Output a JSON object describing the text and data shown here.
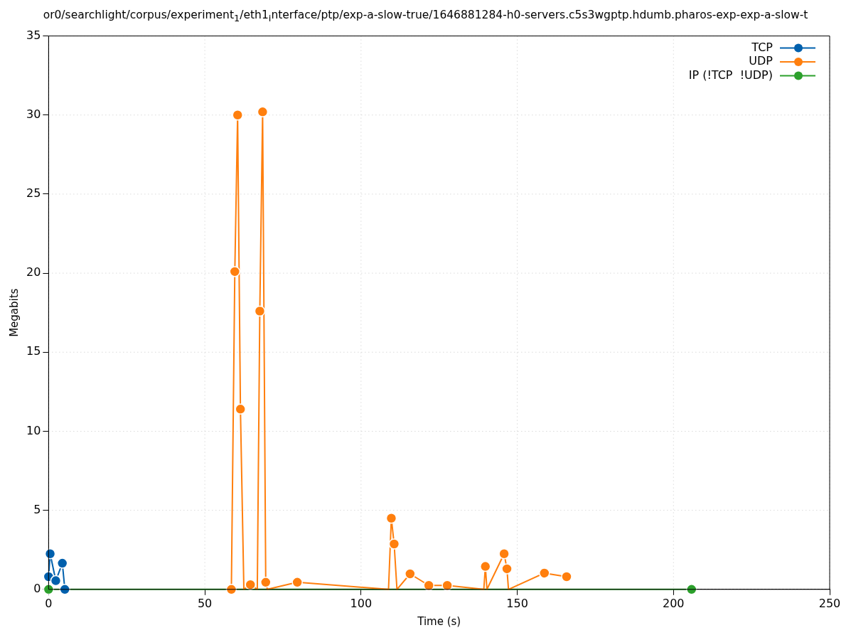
{
  "chart_data": {
    "type": "line",
    "title": "or0/searchlight/corpus/experiment$_{1}$/eth1$_{i}$nterface/ptp/exp-a-slow-true/1646881284-h0-servers.c5s3wgptp.hdumb.pharos-exp-exp-a-slow-t",
    "xlabel": "Time (s)",
    "ylabel": "Megabits",
    "xlim": [
      0,
      250
    ],
    "xticks": [
      0,
      50,
      100,
      150,
      200,
      250
    ],
    "ylim": [
      0,
      35
    ],
    "yticks": [
      0,
      5,
      10,
      15,
      20,
      25,
      30,
      35
    ],
    "grid": true,
    "legend": "top right",
    "marker": "circle",
    "line_style": "solid",
    "series": [
      {
        "name": "TCP",
        "color": "#0060ad",
        "x": [
          0,
          0.5,
          2.3,
          4.4,
          5.2
        ],
        "values": [
          0.8,
          2.25,
          0.55,
          1.65,
          0
        ]
      },
      {
        "name": "UDP",
        "color": "#ff7f0e",
        "x": [
          58.5,
          59.6,
          60.5,
          61.4,
          62.5,
          64.6,
          66.8,
          67.6,
          68.5,
          69.5,
          70,
          79.6,
          108.8,
          109.7,
          110.6,
          111.5,
          115.7,
          121.7,
          127.6,
          139.3,
          139.8,
          140.3,
          145.8,
          146.7,
          147.2,
          158.7,
          165.8
        ],
        "values": [
          0,
          20.1,
          30,
          11.4,
          0,
          0.3,
          0,
          17.6,
          30.2,
          0.45,
          0,
          0.45,
          0,
          4.5,
          2.87,
          0,
          0.98,
          0.25,
          0.25,
          0,
          1.45,
          0,
          2.25,
          1.3,
          0,
          1.03,
          0.8
        ]
      },
      {
        "name": "IP (!TCP  !UDP)",
        "color": "#2ca02c",
        "x": [
          0,
          205.8
        ],
        "values": [
          0,
          0
        ]
      }
    ]
  }
}
